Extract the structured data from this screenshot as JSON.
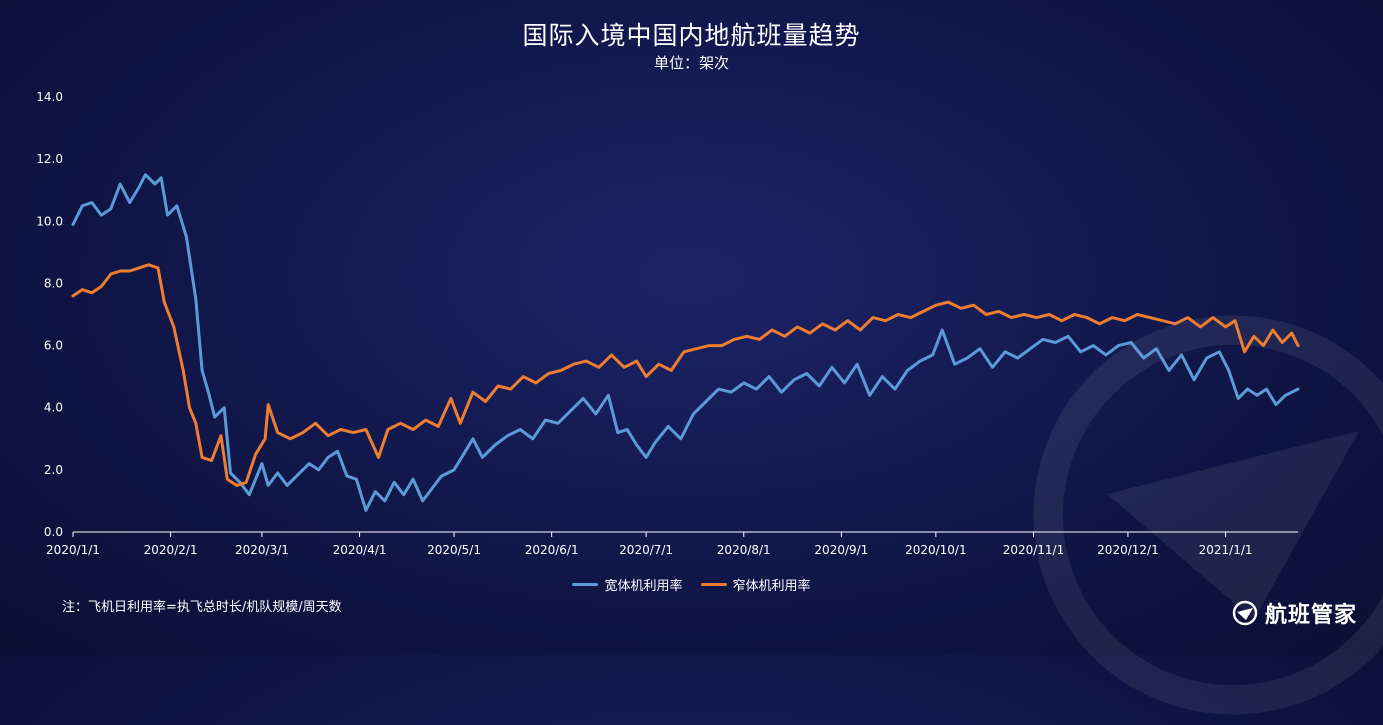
{
  "chart_data": {
    "type": "line",
    "title": "国际入境中国内地航班量趋势",
    "subtitle": "单位：架次",
    "ylim": [
      0,
      14
    ],
    "yticks": [
      "0.0",
      "2.0",
      "4.0",
      "6.0",
      "8.0",
      "10.0",
      "12.0",
      "14.0"
    ],
    "grid": false,
    "legend_position": "bottom-center",
    "x_start": "2020-01-01",
    "x_end": "2021-01-24",
    "xtick_labels": [
      "2020/1/1",
      "2020/2/1",
      "2020/3/1",
      "2020/4/1",
      "2020/5/1",
      "2020/6/1",
      "2020/7/1",
      "2020/8/1",
      "2020/9/1",
      "2020/10/1",
      "2020/11/1",
      "2020/12/1",
      "2021/1/1"
    ],
    "series": [
      {
        "name": "宽体机利用率",
        "color": "#5b9bd5",
        "points": [
          [
            "2020-01-01",
            9.9
          ],
          [
            "2020-01-04",
            10.5
          ],
          [
            "2020-01-07",
            10.6
          ],
          [
            "2020-01-10",
            10.2
          ],
          [
            "2020-01-13",
            10.4
          ],
          [
            "2020-01-16",
            11.2
          ],
          [
            "2020-01-19",
            10.6
          ],
          [
            "2020-01-22",
            11.1
          ],
          [
            "2020-01-24",
            11.5
          ],
          [
            "2020-01-27",
            11.2
          ],
          [
            "2020-01-29",
            11.4
          ],
          [
            "2020-01-31",
            10.2
          ],
          [
            "2020-02-03",
            10.5
          ],
          [
            "2020-02-06",
            9.5
          ],
          [
            "2020-02-09",
            7.5
          ],
          [
            "2020-02-11",
            5.2
          ],
          [
            "2020-02-13",
            4.5
          ],
          [
            "2020-02-15",
            3.7
          ],
          [
            "2020-02-18",
            4.0
          ],
          [
            "2020-02-20",
            1.9
          ],
          [
            "2020-02-23",
            1.6
          ],
          [
            "2020-02-26",
            1.2
          ],
          [
            "2020-03-01",
            2.2
          ],
          [
            "2020-03-03",
            1.5
          ],
          [
            "2020-03-06",
            1.9
          ],
          [
            "2020-03-09",
            1.5
          ],
          [
            "2020-03-12",
            1.8
          ],
          [
            "2020-03-16",
            2.2
          ],
          [
            "2020-03-19",
            2.0
          ],
          [
            "2020-03-22",
            2.4
          ],
          [
            "2020-03-25",
            2.6
          ],
          [
            "2020-03-28",
            1.8
          ],
          [
            "2020-03-31",
            1.7
          ],
          [
            "2020-04-03",
            0.7
          ],
          [
            "2020-04-06",
            1.3
          ],
          [
            "2020-04-09",
            1.0
          ],
          [
            "2020-04-12",
            1.6
          ],
          [
            "2020-04-15",
            1.2
          ],
          [
            "2020-04-18",
            1.7
          ],
          [
            "2020-04-21",
            1.0
          ],
          [
            "2020-04-24",
            1.4
          ],
          [
            "2020-04-27",
            1.8
          ],
          [
            "2020-05-01",
            2.0
          ],
          [
            "2020-05-04",
            2.5
          ],
          [
            "2020-05-07",
            3.0
          ],
          [
            "2020-05-10",
            2.4
          ],
          [
            "2020-05-14",
            2.8
          ],
          [
            "2020-05-18",
            3.1
          ],
          [
            "2020-05-22",
            3.3
          ],
          [
            "2020-05-26",
            3.0
          ],
          [
            "2020-05-30",
            3.6
          ],
          [
            "2020-06-03",
            3.5
          ],
          [
            "2020-06-07",
            3.9
          ],
          [
            "2020-06-11",
            4.3
          ],
          [
            "2020-06-15",
            3.8
          ],
          [
            "2020-06-19",
            4.4
          ],
          [
            "2020-06-22",
            3.2
          ],
          [
            "2020-06-25",
            3.3
          ],
          [
            "2020-06-28",
            2.8
          ],
          [
            "2020-07-01",
            2.4
          ],
          [
            "2020-07-04",
            2.9
          ],
          [
            "2020-07-08",
            3.4
          ],
          [
            "2020-07-12",
            3.0
          ],
          [
            "2020-07-16",
            3.8
          ],
          [
            "2020-07-20",
            4.2
          ],
          [
            "2020-07-24",
            4.6
          ],
          [
            "2020-07-28",
            4.5
          ],
          [
            "2020-08-01",
            4.8
          ],
          [
            "2020-08-05",
            4.6
          ],
          [
            "2020-08-09",
            5.0
          ],
          [
            "2020-08-13",
            4.5
          ],
          [
            "2020-08-17",
            4.9
          ],
          [
            "2020-08-21",
            5.1
          ],
          [
            "2020-08-25",
            4.7
          ],
          [
            "2020-08-29",
            5.3
          ],
          [
            "2020-09-02",
            4.8
          ],
          [
            "2020-09-06",
            5.4
          ],
          [
            "2020-09-10",
            4.4
          ],
          [
            "2020-09-14",
            5.0
          ],
          [
            "2020-09-18",
            4.6
          ],
          [
            "2020-09-22",
            5.2
          ],
          [
            "2020-09-26",
            5.5
          ],
          [
            "2020-09-30",
            5.7
          ],
          [
            "2020-10-03",
            6.5
          ],
          [
            "2020-10-07",
            5.4
          ],
          [
            "2020-10-11",
            5.6
          ],
          [
            "2020-10-15",
            5.9
          ],
          [
            "2020-10-19",
            5.3
          ],
          [
            "2020-10-23",
            5.8
          ],
          [
            "2020-10-27",
            5.6
          ],
          [
            "2020-10-31",
            5.9
          ],
          [
            "2020-11-04",
            6.2
          ],
          [
            "2020-11-08",
            6.1
          ],
          [
            "2020-11-12",
            6.3
          ],
          [
            "2020-11-16",
            5.8
          ],
          [
            "2020-11-20",
            6.0
          ],
          [
            "2020-11-24",
            5.7
          ],
          [
            "2020-11-28",
            6.0
          ],
          [
            "2020-12-02",
            6.1
          ],
          [
            "2020-12-06",
            5.6
          ],
          [
            "2020-12-10",
            5.9
          ],
          [
            "2020-12-14",
            5.2
          ],
          [
            "2020-12-18",
            5.7
          ],
          [
            "2020-12-22",
            4.9
          ],
          [
            "2020-12-26",
            5.6
          ],
          [
            "2020-12-30",
            5.8
          ],
          [
            "2021-01-02",
            5.2
          ],
          [
            "2021-01-05",
            4.3
          ],
          [
            "2021-01-08",
            4.6
          ],
          [
            "2021-01-11",
            4.4
          ],
          [
            "2021-01-14",
            4.6
          ],
          [
            "2021-01-17",
            4.1
          ],
          [
            "2021-01-20",
            4.4
          ],
          [
            "2021-01-24",
            4.6
          ]
        ]
      },
      {
        "name": "窄体机利用率",
        "color": "#ed7d31",
        "points": [
          [
            "2020-01-01",
            7.6
          ],
          [
            "2020-01-04",
            7.8
          ],
          [
            "2020-01-07",
            7.7
          ],
          [
            "2020-01-10",
            7.9
          ],
          [
            "2020-01-13",
            8.3
          ],
          [
            "2020-01-16",
            8.4
          ],
          [
            "2020-01-19",
            8.4
          ],
          [
            "2020-01-22",
            8.5
          ],
          [
            "2020-01-25",
            8.6
          ],
          [
            "2020-01-28",
            8.5
          ],
          [
            "2020-01-30",
            7.4
          ],
          [
            "2020-02-02",
            6.6
          ],
          [
            "2020-02-05",
            5.2
          ],
          [
            "2020-02-07",
            4.0
          ],
          [
            "2020-02-09",
            3.5
          ],
          [
            "2020-02-11",
            2.4
          ],
          [
            "2020-02-14",
            2.3
          ],
          [
            "2020-02-17",
            3.1
          ],
          [
            "2020-02-19",
            1.7
          ],
          [
            "2020-02-22",
            1.5
          ],
          [
            "2020-02-25",
            1.6
          ],
          [
            "2020-02-28",
            2.5
          ],
          [
            "2020-03-02",
            3.0
          ],
          [
            "2020-03-03",
            4.1
          ],
          [
            "2020-03-06",
            3.2
          ],
          [
            "2020-03-10",
            3.0
          ],
          [
            "2020-03-14",
            3.2
          ],
          [
            "2020-03-18",
            3.5
          ],
          [
            "2020-03-22",
            3.1
          ],
          [
            "2020-03-26",
            3.3
          ],
          [
            "2020-03-30",
            3.2
          ],
          [
            "2020-04-03",
            3.3
          ],
          [
            "2020-04-07",
            2.4
          ],
          [
            "2020-04-10",
            3.3
          ],
          [
            "2020-04-14",
            3.5
          ],
          [
            "2020-04-18",
            3.3
          ],
          [
            "2020-04-22",
            3.6
          ],
          [
            "2020-04-26",
            3.4
          ],
          [
            "2020-04-30",
            4.3
          ],
          [
            "2020-05-03",
            3.5
          ],
          [
            "2020-05-07",
            4.5
          ],
          [
            "2020-05-11",
            4.2
          ],
          [
            "2020-05-15",
            4.7
          ],
          [
            "2020-05-19",
            4.6
          ],
          [
            "2020-05-23",
            5.0
          ],
          [
            "2020-05-27",
            4.8
          ],
          [
            "2020-05-31",
            5.1
          ],
          [
            "2020-06-04",
            5.2
          ],
          [
            "2020-06-08",
            5.4
          ],
          [
            "2020-06-12",
            5.5
          ],
          [
            "2020-06-16",
            5.3
          ],
          [
            "2020-06-20",
            5.7
          ],
          [
            "2020-06-24",
            5.3
          ],
          [
            "2020-06-28",
            5.5
          ],
          [
            "2020-07-01",
            5.0
          ],
          [
            "2020-07-05",
            5.4
          ],
          [
            "2020-07-09",
            5.2
          ],
          [
            "2020-07-13",
            5.8
          ],
          [
            "2020-07-17",
            5.9
          ],
          [
            "2020-07-21",
            6.0
          ],
          [
            "2020-07-25",
            6.0
          ],
          [
            "2020-07-29",
            6.2
          ],
          [
            "2020-08-02",
            6.3
          ],
          [
            "2020-08-06",
            6.2
          ],
          [
            "2020-08-10",
            6.5
          ],
          [
            "2020-08-14",
            6.3
          ],
          [
            "2020-08-18",
            6.6
          ],
          [
            "2020-08-22",
            6.4
          ],
          [
            "2020-08-26",
            6.7
          ],
          [
            "2020-08-30",
            6.5
          ],
          [
            "2020-09-03",
            6.8
          ],
          [
            "2020-09-07",
            6.5
          ],
          [
            "2020-09-11",
            6.9
          ],
          [
            "2020-09-15",
            6.8
          ],
          [
            "2020-09-19",
            7.0
          ],
          [
            "2020-09-23",
            6.9
          ],
          [
            "2020-09-27",
            7.1
          ],
          [
            "2020-10-01",
            7.3
          ],
          [
            "2020-10-05",
            7.4
          ],
          [
            "2020-10-09",
            7.2
          ],
          [
            "2020-10-13",
            7.3
          ],
          [
            "2020-10-17",
            7.0
          ],
          [
            "2020-10-21",
            7.1
          ],
          [
            "2020-10-25",
            6.9
          ],
          [
            "2020-10-29",
            7.0
          ],
          [
            "2020-11-02",
            6.9
          ],
          [
            "2020-11-06",
            7.0
          ],
          [
            "2020-11-10",
            6.8
          ],
          [
            "2020-11-14",
            7.0
          ],
          [
            "2020-11-18",
            6.9
          ],
          [
            "2020-11-22",
            6.7
          ],
          [
            "2020-11-26",
            6.9
          ],
          [
            "2020-11-30",
            6.8
          ],
          [
            "2020-12-04",
            7.0
          ],
          [
            "2020-12-08",
            6.9
          ],
          [
            "2020-12-12",
            6.8
          ],
          [
            "2020-12-16",
            6.7
          ],
          [
            "2020-12-20",
            6.9
          ],
          [
            "2020-12-24",
            6.6
          ],
          [
            "2020-12-28",
            6.9
          ],
          [
            "2021-01-01",
            6.6
          ],
          [
            "2021-01-04",
            6.8
          ],
          [
            "2021-01-07",
            5.8
          ],
          [
            "2021-01-10",
            6.3
          ],
          [
            "2021-01-13",
            6.0
          ],
          [
            "2021-01-16",
            6.5
          ],
          [
            "2021-01-19",
            6.1
          ],
          [
            "2021-01-22",
            6.4
          ],
          [
            "2021-01-24",
            6.0
          ]
        ]
      }
    ]
  },
  "footnote": "注：飞机日利用率=执飞总时长/机队规模/周天数",
  "brand": "航班管家"
}
